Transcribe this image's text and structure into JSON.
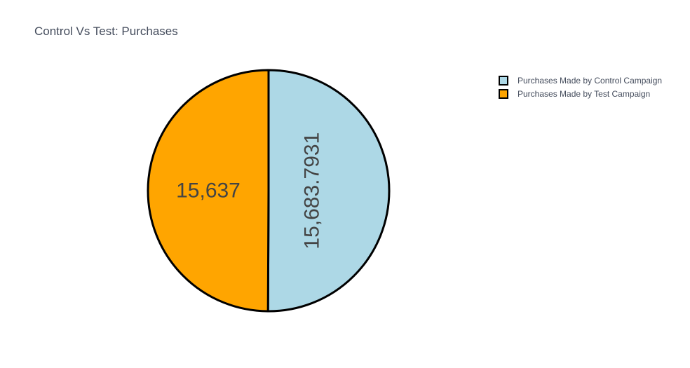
{
  "chart_data": {
    "type": "pie",
    "title": "Control Vs Test: Purchases",
    "categories": [
      "Purchases Made by Control Campaign",
      "Purchases Made by Test Campaign"
    ],
    "values": [
      15683.7931,
      15637
    ],
    "value_labels": [
      "15,683.7931",
      "15,637"
    ],
    "colors": [
      "#add8e6",
      "#ffa500"
    ],
    "slice_outline_color": "#000000",
    "legend_position": "top-right",
    "sort": "descending",
    "direction": "clockwise",
    "start_angle": "top (12 o'clock)"
  }
}
